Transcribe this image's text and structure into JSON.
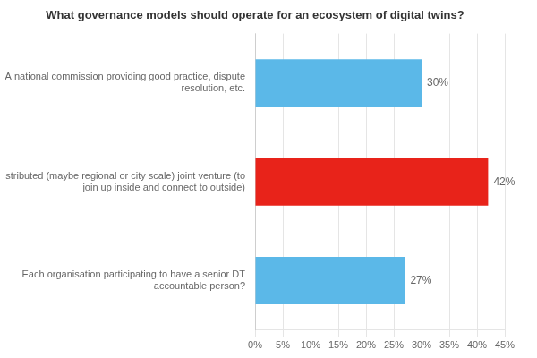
{
  "chart_data": {
    "type": "bar",
    "orientation": "horizontal",
    "title": "What governance models should operate for an ecosystem of digital twins?",
    "categories": [
      "A national commission providing good practice, dispute\nresolution, etc.",
      "Distributed (maybe regional or city scale) joint venture (to\njoin up inside and connect to outside)",
      "Each organisation participating to have a senior DT\naccountable person?"
    ],
    "values": [
      30,
      42,
      27
    ],
    "colors": [
      "#5BB8E8",
      "#E8231A",
      "#5BB8E8"
    ],
    "data_labels": true,
    "value_labels": [
      "30%",
      "42%",
      "27%"
    ],
    "xlim": [
      0,
      45
    ],
    "xticks": [
      {
        "value": 0,
        "label": "0%"
      },
      {
        "value": 5,
        "label": "5%"
      },
      {
        "value": 10,
        "label": "10%"
      },
      {
        "value": 15,
        "label": "15%"
      },
      {
        "value": 20,
        "label": "20%"
      },
      {
        "value": 25,
        "label": "25%"
      },
      {
        "value": 30,
        "label": "30%"
      },
      {
        "value": 35,
        "label": "35%"
      },
      {
        "value": 40,
        "label": "40%"
      },
      {
        "value": 45,
        "label": "45%"
      }
    ],
    "grid": true
  }
}
